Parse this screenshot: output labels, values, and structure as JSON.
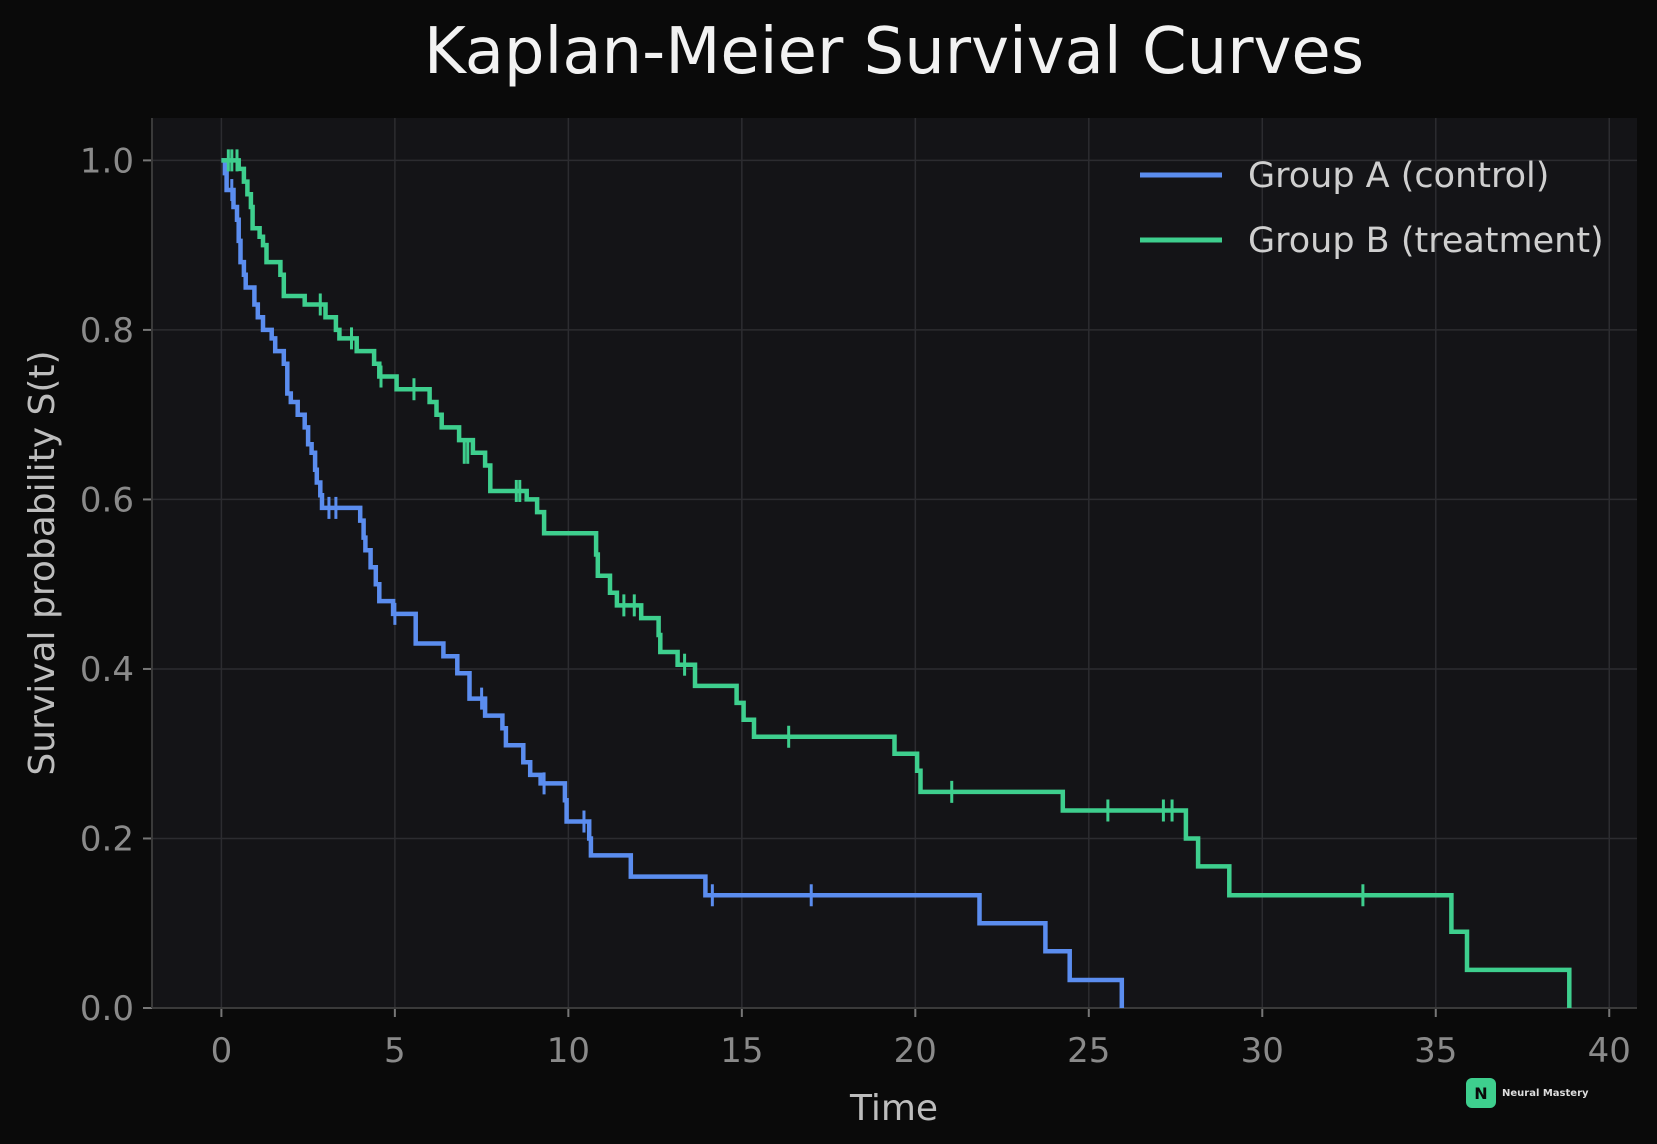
{
  "chart_data": {
    "type": "line",
    "step": true,
    "title": "Kaplan-Meier Survival Curves",
    "xlabel": "Time",
    "ylabel": "Survival probability S(t)",
    "xlim": [
      -2,
      40.8
    ],
    "ylim": [
      0,
      1.05
    ],
    "xticks": [
      0,
      5,
      10,
      15,
      20,
      25,
      30,
      35,
      40
    ],
    "yticks": [
      "0.0",
      "0.2",
      "0.4",
      "0.6",
      "0.8",
      "1.0"
    ],
    "grid": true,
    "legend_position": "top-right",
    "background": "#141417",
    "series": [
      {
        "name": "Group A (control)",
        "color": "#5b8def",
        "steps": [
          [
            0,
            1.0
          ],
          [
            0.1,
            0.985
          ],
          [
            0.15,
            0.965
          ],
          [
            0.3,
            0.965
          ],
          [
            0.35,
            0.945
          ],
          [
            0.45,
            0.93
          ],
          [
            0.5,
            0.905
          ],
          [
            0.55,
            0.88
          ],
          [
            0.65,
            0.865
          ],
          [
            0.7,
            0.85
          ],
          [
            0.9,
            0.85
          ],
          [
            0.95,
            0.83
          ],
          [
            1.05,
            0.815
          ],
          [
            1.2,
            0.8
          ],
          [
            1.45,
            0.79
          ],
          [
            1.55,
            0.775
          ],
          [
            1.8,
            0.76
          ],
          [
            1.9,
            0.725
          ],
          [
            2.0,
            0.715
          ],
          [
            2.2,
            0.7
          ],
          [
            2.4,
            0.685
          ],
          [
            2.5,
            0.665
          ],
          [
            2.6,
            0.655
          ],
          [
            2.7,
            0.635
          ],
          [
            2.75,
            0.62
          ],
          [
            2.85,
            0.605
          ],
          [
            2.9,
            0.59
          ],
          [
            4.0,
            0.575
          ],
          [
            4.1,
            0.555
          ],
          [
            4.15,
            0.54
          ],
          [
            4.3,
            0.52
          ],
          [
            4.45,
            0.5
          ],
          [
            4.55,
            0.48
          ],
          [
            4.95,
            0.465
          ],
          [
            5.6,
            0.43
          ],
          [
            6.4,
            0.415
          ],
          [
            6.8,
            0.395
          ],
          [
            7.15,
            0.365
          ],
          [
            7.45,
            0.365
          ],
          [
            7.6,
            0.345
          ],
          [
            8.1,
            0.33
          ],
          [
            8.2,
            0.31
          ],
          [
            8.7,
            0.29
          ],
          [
            8.9,
            0.275
          ],
          [
            9.2,
            0.265
          ],
          [
            9.9,
            0.245
          ],
          [
            9.95,
            0.22
          ],
          [
            10.6,
            0.2
          ],
          [
            10.65,
            0.18
          ],
          [
            11.8,
            0.155
          ],
          [
            13.95,
            0.133
          ],
          [
            21.85,
            0.1
          ],
          [
            23.75,
            0.067
          ],
          [
            24.45,
            0.033
          ],
          [
            25.95,
            0.0
          ]
        ],
        "censored": [
          [
            0.3,
            0.965
          ],
          [
            3.1,
            0.59
          ],
          [
            3.3,
            0.59
          ],
          [
            5.0,
            0.465
          ],
          [
            7.5,
            0.365
          ],
          [
            9.3,
            0.265
          ],
          [
            10.45,
            0.22
          ],
          [
            14.15,
            0.133
          ],
          [
            17.0,
            0.133
          ]
        ]
      },
      {
        "name": "Group B (treatment)",
        "color": "#3ecf8e",
        "steps": [
          [
            0,
            1.0
          ],
          [
            0.5,
            0.99
          ],
          [
            0.65,
            0.975
          ],
          [
            0.75,
            0.96
          ],
          [
            0.85,
            0.945
          ],
          [
            0.9,
            0.92
          ],
          [
            1.1,
            0.91
          ],
          [
            1.2,
            0.9
          ],
          [
            1.3,
            0.88
          ],
          [
            1.7,
            0.865
          ],
          [
            1.8,
            0.84
          ],
          [
            2.4,
            0.83
          ],
          [
            3.0,
            0.815
          ],
          [
            3.3,
            0.8
          ],
          [
            3.4,
            0.79
          ],
          [
            3.9,
            0.775
          ],
          [
            4.4,
            0.76
          ],
          [
            4.55,
            0.745
          ],
          [
            5.05,
            0.73
          ],
          [
            5.95,
            0.73
          ],
          [
            6.0,
            0.715
          ],
          [
            6.2,
            0.7
          ],
          [
            6.35,
            0.685
          ],
          [
            6.85,
            0.67
          ],
          [
            7.25,
            0.655
          ],
          [
            7.6,
            0.64
          ],
          [
            7.75,
            0.61
          ],
          [
            8.8,
            0.6
          ],
          [
            9.1,
            0.585
          ],
          [
            9.3,
            0.56
          ],
          [
            10.8,
            0.535
          ],
          [
            10.85,
            0.51
          ],
          [
            11.2,
            0.49
          ],
          [
            11.4,
            0.475
          ],
          [
            12.1,
            0.46
          ],
          [
            12.6,
            0.44
          ],
          [
            12.65,
            0.42
          ],
          [
            13.15,
            0.405
          ],
          [
            13.65,
            0.38
          ],
          [
            14.85,
            0.36
          ],
          [
            15.05,
            0.34
          ],
          [
            15.35,
            0.32
          ],
          [
            19.4,
            0.3
          ],
          [
            20.05,
            0.28
          ],
          [
            20.15,
            0.255
          ],
          [
            24.25,
            0.233
          ],
          [
            27.8,
            0.2
          ],
          [
            28.15,
            0.167
          ],
          [
            29.05,
            0.133
          ],
          [
            35.45,
            0.09
          ],
          [
            35.9,
            0.045
          ],
          [
            38.85,
            0.0
          ]
        ],
        "censored": [
          [
            0.2,
            1.0
          ],
          [
            0.3,
            1.0
          ],
          [
            0.45,
            1.0
          ],
          [
            2.85,
            0.83
          ],
          [
            3.75,
            0.79
          ],
          [
            4.6,
            0.745
          ],
          [
            5.55,
            0.73
          ],
          [
            7.0,
            0.655
          ],
          [
            7.1,
            0.655
          ],
          [
            8.5,
            0.61
          ],
          [
            8.6,
            0.61
          ],
          [
            11.6,
            0.475
          ],
          [
            11.9,
            0.475
          ],
          [
            13.35,
            0.405
          ],
          [
            16.35,
            0.32
          ],
          [
            21.05,
            0.255
          ],
          [
            25.55,
            0.233
          ],
          [
            27.15,
            0.233
          ],
          [
            27.4,
            0.233
          ],
          [
            32.9,
            0.133
          ]
        ]
      }
    ]
  },
  "watermark": {
    "letter": "N",
    "text": "Neural Mastery",
    "color": "#3ecf8e"
  }
}
